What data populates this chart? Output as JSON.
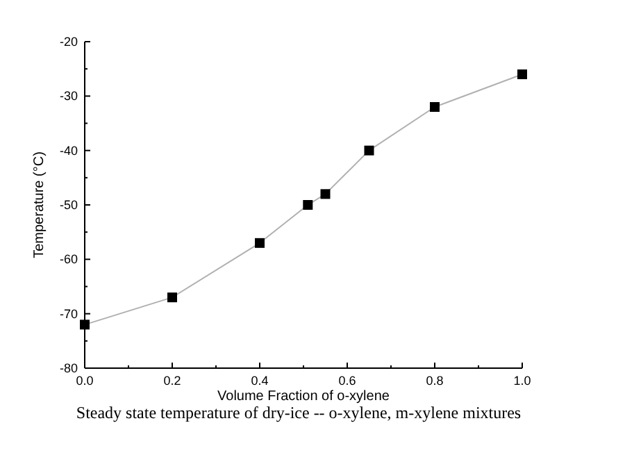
{
  "chart_data": {
    "type": "line",
    "xlabel": "Volume Fraction of o-xylene",
    "ylabel": "Temperature  (°C)",
    "annotations": [
      "Steady state temperature of dry-ice -- o-xylene, m-xylene mixtures"
    ],
    "x": [
      0,
      0.2,
      0.4,
      0.51,
      0.55,
      0.65,
      0.8,
      1.0
    ],
    "series": [
      {
        "color": "#000000",
        "values": [
          -72,
          -67,
          -57,
          -50,
          -48,
          -40,
          -32,
          -26
        ]
      }
    ],
    "xlim": [
      0,
      1
    ],
    "xticks": [
      {
        "value": 0,
        "label": "0.0"
      },
      0.2,
      0.4,
      0.6,
      0.8,
      {
        "value": 1,
        "label": "1.0"
      }
    ],
    "ylim": [
      -80,
      -20
    ],
    "yticks": [
      -80,
      -70,
      -60,
      -50,
      -40,
      -30,
      -20
    ],
    "marker": "square",
    "line_style": "solid"
  }
}
